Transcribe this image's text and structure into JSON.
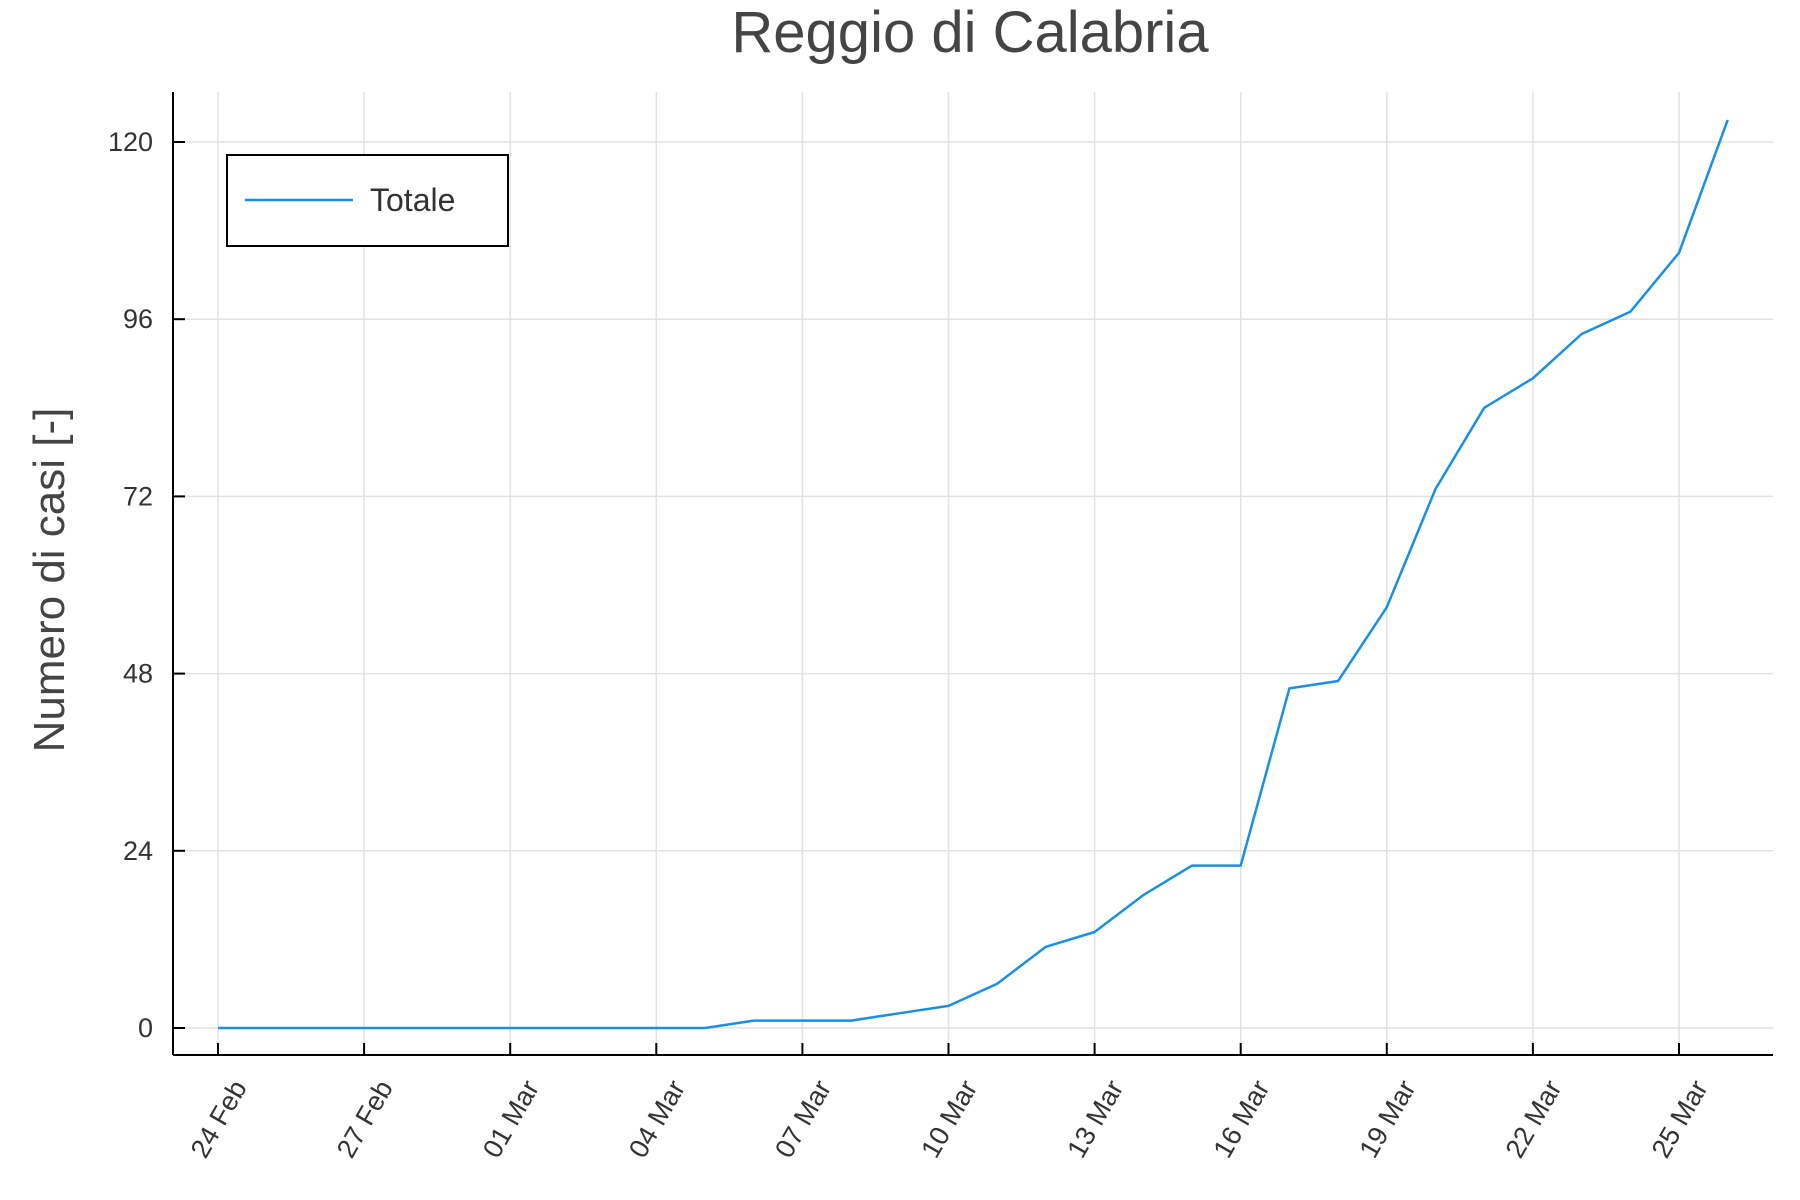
{
  "chart_data": {
    "type": "line",
    "title": "Reggio di Calabria",
    "xlabel": "",
    "ylabel": "Numero di casi [-]",
    "x_tick_labels": [
      "24 Feb",
      "27 Feb",
      "01 Mar",
      "04 Mar",
      "07 Mar",
      "10 Mar",
      "13 Mar",
      "16 Mar",
      "19 Mar",
      "22 Mar",
      "25 Mar"
    ],
    "y_ticks": [
      0,
      24,
      48,
      72,
      96,
      120
    ],
    "ylim": [
      -4,
      120
    ],
    "grid": true,
    "legend_position": "top-left",
    "series": [
      {
        "name": "Totale",
        "color": "#1a8fe3",
        "x": [
          "24 Feb",
          "25 Feb",
          "26 Feb",
          "27 Feb",
          "28 Feb",
          "29 Feb",
          "01 Mar",
          "02 Mar",
          "03 Mar",
          "04 Mar",
          "05 Mar",
          "06 Mar",
          "07 Mar",
          "08 Mar",
          "09 Mar",
          "10 Mar",
          "11 Mar",
          "12 Mar",
          "13 Mar",
          "14 Mar",
          "15 Mar",
          "16 Mar",
          "17 Mar",
          "18 Mar",
          "19 Mar",
          "20 Mar",
          "21 Mar",
          "22 Mar",
          "23 Mar",
          "24 Mar",
          "25 Mar",
          "26 Mar"
        ],
        "values": [
          0,
          0,
          0,
          0,
          0,
          0,
          0,
          0,
          0,
          0,
          0,
          1,
          1,
          1,
          2,
          3,
          6,
          11,
          13,
          18,
          22,
          22,
          46,
          47,
          57,
          73,
          84,
          88,
          94,
          97,
          105,
          123
        ]
      }
    ]
  }
}
